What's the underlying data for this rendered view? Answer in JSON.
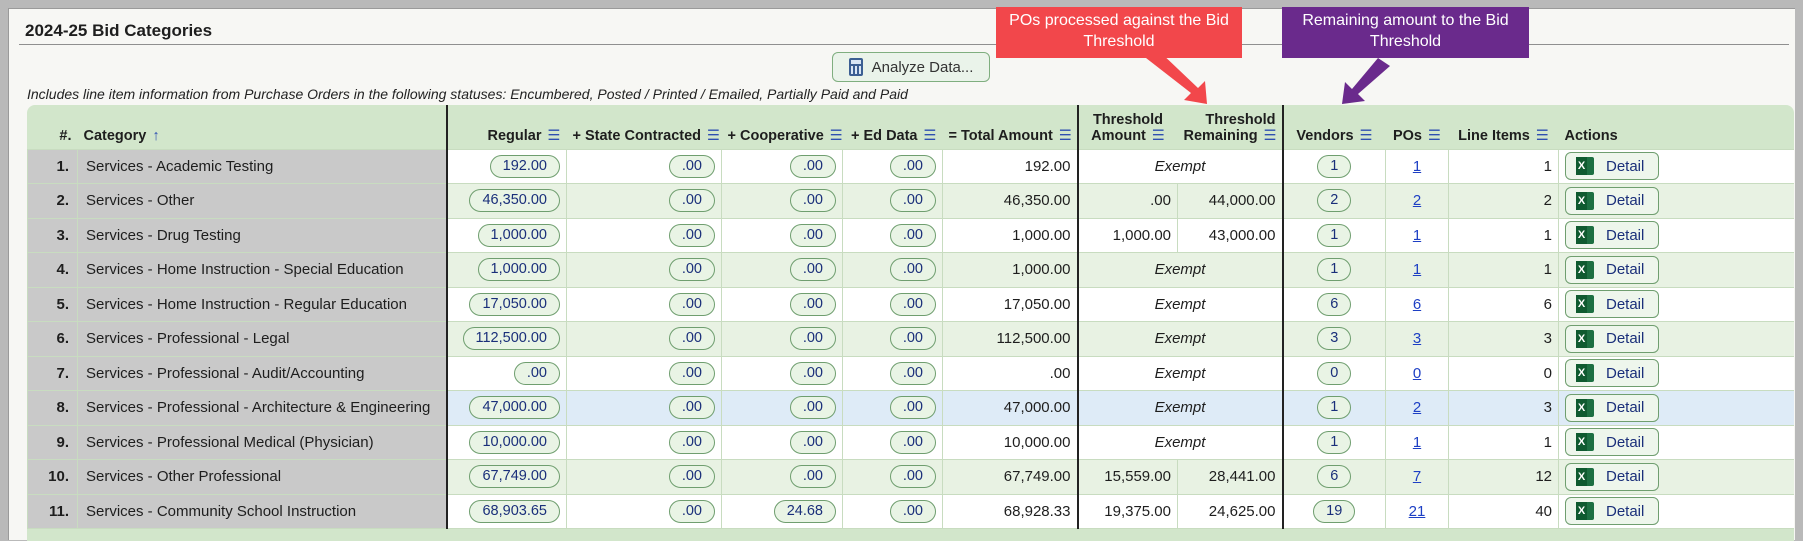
{
  "panel": {
    "title": "2024-25 Bid Categories",
    "analyze_button": "Analyze Data...",
    "statuses_note": "Includes line item information from Purchase Orders in the following statuses: Encumbered, Posted / Printed / Emailed, Partially Paid and Paid"
  },
  "callouts": {
    "red": "POs processed against the Bid Threshold",
    "purple": "Remaining amount to the Bid Threshold"
  },
  "columns": {
    "num": "#.",
    "category": "Category",
    "regular": "Regular",
    "state_contracted": "+ State Contracted",
    "cooperative": "+ Cooperative",
    "ed_data": "+ Ed Data",
    "total_amount": "= Total Amount",
    "threshold_amount_l1": "Threshold",
    "threshold_amount_l2": "Amount",
    "threshold_remaining_l1": "Threshold",
    "threshold_remaining_l2": "Remaining",
    "vendors": "Vendors",
    "pos": "POs",
    "line_items": "Line Items",
    "actions": "Actions"
  },
  "icons": {
    "menu": "hamburger-menu-icon",
    "sort": "sort-ascending-icon",
    "calculator": "calculator-icon",
    "excel": "excel-icon"
  },
  "detail_label": "Detail",
  "exempt_label": "Exempt",
  "rows": [
    {
      "num": "1.",
      "category": "Services - Academic Testing",
      "regular": "192.00",
      "state": ".00",
      "coop": ".00",
      "ed": ".00",
      "total": "192.00",
      "thr_amt": "",
      "thr_rem": "",
      "exempt": true,
      "vendors": "1",
      "pos": "1",
      "lines": "1"
    },
    {
      "num": "2.",
      "category": "Services - Other",
      "regular": "46,350.00",
      "state": ".00",
      "coop": ".00",
      "ed": ".00",
      "total": "46,350.00",
      "thr_amt": ".00",
      "thr_rem": "44,000.00",
      "exempt": false,
      "vendors": "2",
      "pos": "2",
      "lines": "2"
    },
    {
      "num": "3.",
      "category": "Services - Drug Testing",
      "regular": "1,000.00",
      "state": ".00",
      "coop": ".00",
      "ed": ".00",
      "total": "1,000.00",
      "thr_amt": "1,000.00",
      "thr_rem": "43,000.00",
      "exempt": false,
      "vendors": "1",
      "pos": "1",
      "lines": "1"
    },
    {
      "num": "4.",
      "category": "Services - Home Instruction - Special Education",
      "regular": "1,000.00",
      "state": ".00",
      "coop": ".00",
      "ed": ".00",
      "total": "1,000.00",
      "thr_amt": "",
      "thr_rem": "",
      "exempt": true,
      "vendors": "1",
      "pos": "1",
      "lines": "1"
    },
    {
      "num": "5.",
      "category": "Services - Home Instruction - Regular Education",
      "regular": "17,050.00",
      "state": ".00",
      "coop": ".00",
      "ed": ".00",
      "total": "17,050.00",
      "thr_amt": "",
      "thr_rem": "",
      "exempt": true,
      "vendors": "6",
      "pos": "6",
      "lines": "6"
    },
    {
      "num": "6.",
      "category": "Services - Professional - Legal",
      "regular": "112,500.00",
      "state": ".00",
      "coop": ".00",
      "ed": ".00",
      "total": "112,500.00",
      "thr_amt": "",
      "thr_rem": "",
      "exempt": true,
      "vendors": "3",
      "pos": "3",
      "lines": "3"
    },
    {
      "num": "7.",
      "category": "Services - Professional - Audit/Accounting",
      "regular": ".00",
      "state": ".00",
      "coop": ".00",
      "ed": ".00",
      "total": ".00",
      "thr_amt": "",
      "thr_rem": "",
      "exempt": true,
      "vendors": "0",
      "pos": "0",
      "lines": "0"
    },
    {
      "num": "8.",
      "category": "Services - Professional - Architecture & Engineering",
      "regular": "47,000.00",
      "state": ".00",
      "coop": ".00",
      "ed": ".00",
      "total": "47,000.00",
      "thr_amt": "",
      "thr_rem": "",
      "exempt": true,
      "vendors": "1",
      "pos": "2",
      "lines": "3",
      "highlight": true
    },
    {
      "num": "9.",
      "category": "Services - Professional Medical (Physician)",
      "regular": "10,000.00",
      "state": ".00",
      "coop": ".00",
      "ed": ".00",
      "total": "10,000.00",
      "thr_amt": "",
      "thr_rem": "",
      "exempt": true,
      "vendors": "1",
      "pos": "1",
      "lines": "1"
    },
    {
      "num": "10.",
      "category": "Services - Other Professional",
      "regular": "67,749.00",
      "state": ".00",
      "coop": ".00",
      "ed": ".00",
      "total": "67,749.00",
      "thr_amt": "15,559.00",
      "thr_rem": "28,441.00",
      "exempt": false,
      "vendors": "6",
      "pos": "7",
      "lines": "12"
    },
    {
      "num": "11.",
      "category": "Services - Community School Instruction",
      "regular": "68,903.65",
      "state": ".00",
      "coop": "24.68",
      "ed": ".00",
      "total": "68,928.33",
      "thr_amt": "19,375.00",
      "thr_rem": "24,625.00",
      "exempt": false,
      "vendors": "19",
      "pos": "21",
      "lines": "40"
    }
  ]
}
